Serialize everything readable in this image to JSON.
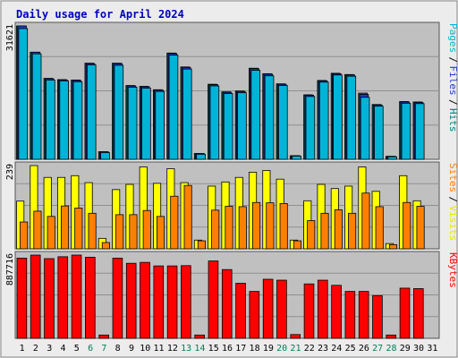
{
  "chart_data": {
    "type": "bar",
    "title": "Daily usage for April 2024",
    "x": [
      "1",
      "2",
      "3",
      "4",
      "5",
      "6",
      "7",
      "8",
      "9",
      "10",
      "11",
      "12",
      "13",
      "14",
      "15",
      "16",
      "17",
      "18",
      "19",
      "20",
      "21",
      "22",
      "23",
      "24",
      "25",
      "26",
      "27",
      "28",
      "29",
      "30",
      "31"
    ],
    "weekend_days": [
      "6",
      "7",
      "13",
      "14",
      "20",
      "21",
      "27",
      "28"
    ],
    "panels": [
      {
        "id": "hits_files_pages",
        "ymax_label": "31621",
        "ymax": 31621,
        "legend": [
          "Pages",
          "Files",
          "Hits"
        ],
        "legend_colors": [
          "#00b4d8",
          "#1a3cc8",
          "#008080"
        ],
        "series": [
          {
            "name": "Hits",
            "color": "#008080",
            "values": [
              31621,
              25400,
              19200,
              18900,
              18800,
              22800,
              1800,
              22800,
              17500,
              17300,
              16500,
              25200,
              21900,
              1400,
              17800,
              16000,
              16200,
              21600,
              20300,
              17900,
              850,
              15300,
              18700,
              20400,
              20100,
              15700,
              13000,
              700,
              13700,
              13600,
              0
            ]
          },
          {
            "name": "Files",
            "color": "#1a3cc8",
            "values": [
              31621,
              25400,
              19100,
              18800,
              18700,
              22700,
              1800,
              22700,
              17400,
              17200,
              16400,
              25100,
              21800,
              1400,
              17700,
              15900,
              16100,
              21500,
              20200,
              17800,
              850,
              15200,
              18600,
              20300,
              20000,
              15400,
              12900,
              700,
              13600,
              13500,
              0
            ]
          },
          {
            "name": "Pages",
            "color": "#00b4d8",
            "values": [
              31000,
              25000,
              18800,
              18600,
              18400,
              22400,
              1600,
              22300,
              17100,
              16900,
              16100,
              24700,
              21400,
              1200,
              17400,
              15600,
              15800,
              21100,
              19800,
              17500,
              750,
              14900,
              18300,
              20000,
              19700,
              14700,
              12600,
              600,
              13300,
              13200,
              0
            ]
          }
        ]
      },
      {
        "id": "visits_sites",
        "ymax_label": "239",
        "ymax": 239,
        "legend": [
          "Sites",
          "Visits"
        ],
        "legend_colors": [
          "#ff8000",
          "#e8e800"
        ],
        "series": [
          {
            "name": "Visits",
            "color": "#ffff00",
            "values": [
              137,
              239,
              205,
              205,
              210,
              190,
              30,
              170,
              185,
              235,
              188,
              230,
              190,
              25,
              180,
              192,
              205,
              220,
              225,
              200,
              25,
              138,
              185,
              173,
              180,
              235,
              165,
              15,
              210,
              138,
              0
            ]
          },
          {
            "name": "Sites",
            "color": "#ff8000",
            "values": [
              77,
              108,
              93,
              123,
              117,
              102,
              18,
              98,
              98,
              110,
              93,
              151,
              182,
              23,
              111,
              122,
              121,
              133,
              132,
              130,
              23,
              81,
              102,
              112,
              102,
              160,
              121,
              12,
              133,
              122,
              0
            ]
          }
        ]
      },
      {
        "id": "kbytes",
        "ymax_label": "887716",
        "ymax": 887716,
        "legend": [
          "KBytes"
        ],
        "legend_colors": [
          "#ff0000"
        ],
        "series": [
          {
            "name": "KBytes",
            "color": "#ff0000",
            "values": [
              855000,
              887716,
              850000,
              870000,
              887716,
              865000,
              35000,
              855000,
              800000,
              810000,
              772000,
              772000,
              775000,
              35000,
              825000,
              733000,
              587000,
              500000,
              630000,
              620000,
              40000,
              580000,
              620000,
              565000,
              500000,
              500000,
              455000,
              35000,
              535000,
              530000,
              0
            ]
          }
        ]
      }
    ]
  },
  "colors": {
    "page_bg": "#ececec",
    "plot_bg": "#c0c0c0",
    "title": "#0000c0",
    "weekday_label": "#000000",
    "weekend_label": "#00805a",
    "grid": "#909090"
  }
}
